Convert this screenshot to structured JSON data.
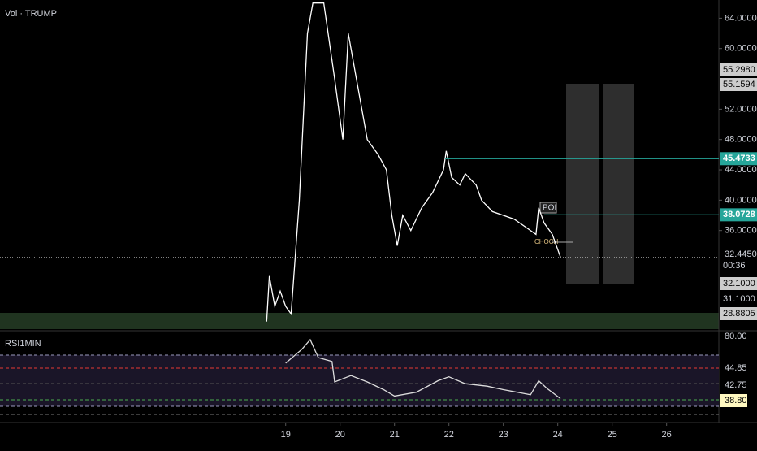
{
  "labels": {
    "volume": "Vol · TRUMP",
    "rsi": "RSI1MIN",
    "poi": "POI",
    "choch": "CHOCH"
  },
  "price_tags": [
    "55.2980",
    "55.1594",
    "00:36",
    "32.1000",
    "31.1000",
    "28.8805"
  ],
  "rsi_tags": [
    "80.00",
    "44.85",
    "42.75",
    "38.80"
  ],
  "chart_data": [
    {
      "type": "line",
      "color": "#ffffff",
      "x": [
        18.65,
        18.7,
        18.8,
        18.9,
        19.0,
        19.1,
        19.25,
        19.4,
        19.5,
        19.7,
        19.9,
        20.05,
        20.15,
        20.3,
        20.5,
        20.7,
        20.85,
        20.95,
        21.05,
        21.15,
        21.3,
        21.5,
        21.7,
        21.9,
        21.95,
        22.05,
        22.2,
        22.3,
        22.5,
        22.6,
        22.8,
        23.0,
        23.2,
        23.4,
        23.6,
        23.65,
        23.75,
        23.9,
        24.05
      ],
      "values": [
        24,
        30,
        26,
        28,
        26,
        25,
        40,
        62,
        66,
        66,
        56,
        48,
        62,
        56,
        48,
        46,
        44,
        38,
        34,
        38,
        36,
        39,
        41,
        44,
        46.5,
        43,
        42,
        43.5,
        42,
        40,
        38.5,
        38,
        37.5,
        36.5,
        35.5,
        39,
        37,
        35.5,
        32.5
      ],
      "xlim": [
        13.75,
        26.96
      ],
      "ylim": [
        23.0,
        66.4
      ],
      "xticks": [
        19,
        20,
        21,
        22,
        23,
        24,
        25,
        26
      ],
      "yticks": [
        {
          "value": 64,
          "label": "64.0000"
        },
        {
          "value": 60,
          "label": "60.0000"
        },
        {
          "value": 52,
          "label": "52.0000"
        },
        {
          "value": 48,
          "label": "48.0000"
        },
        {
          "value": 44,
          "label": "44.0000"
        },
        {
          "value": 40,
          "label": "40.0000"
        },
        {
          "value": 36,
          "label": "36.0000"
        }
      ],
      "hlines": [
        45.4733,
        38.0728
      ],
      "hline_color": "#26a69a",
      "last": {
        "value": 32.445,
        "label": "32.4450"
      }
    },
    {
      "type": "line",
      "color": "#dddddd",
      "x": [
        19.0,
        19.3,
        19.45,
        19.6,
        19.85,
        19.9,
        20.2,
        20.5,
        20.8,
        21.0,
        21.4,
        21.8,
        22.0,
        22.3,
        22.7,
        23.0,
        23.5,
        23.65,
        23.8,
        24.05
      ],
      "values": [
        63.7,
        74.6,
        82,
        68,
        65,
        49,
        54,
        49,
        43,
        38,
        41,
        50,
        53,
        47.6,
        45.7,
        43,
        39,
        50,
        44,
        36
      ],
      "ylim": [
        17.3,
        87.1
      ]
    }
  ]
}
